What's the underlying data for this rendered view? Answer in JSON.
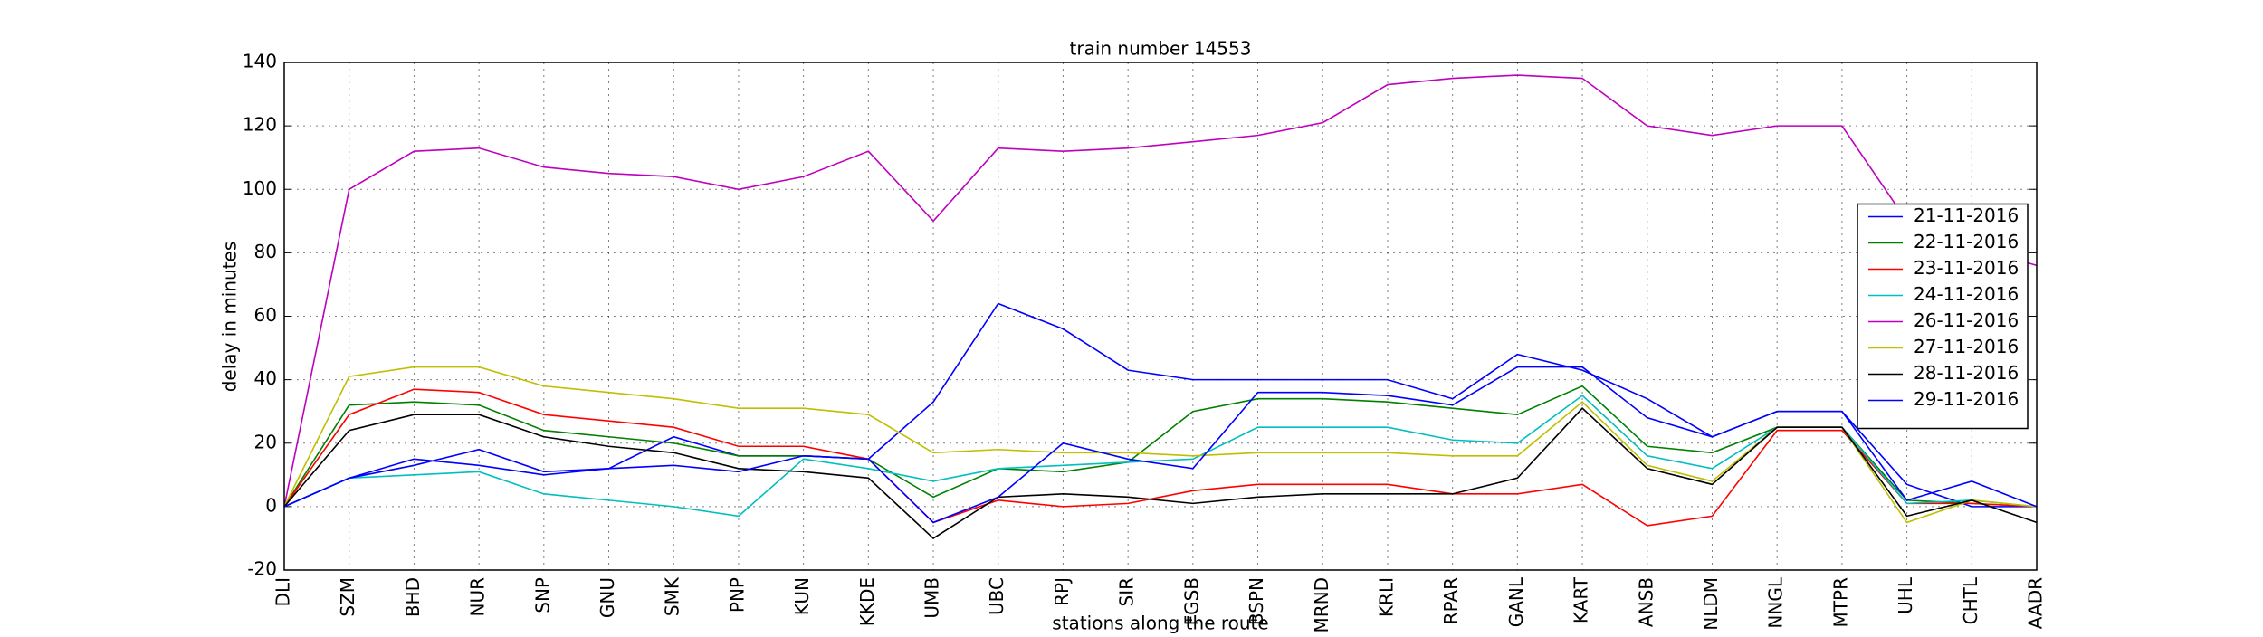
{
  "chart_data": {
    "type": "line",
    "title": "train number 14553",
    "x_label": "stations along the route",
    "y_label": "delay in minutes",
    "categories": [
      "DLI",
      "SZM",
      "BHD",
      "NUR",
      "SNP",
      "GNU",
      "SMK",
      "PNP",
      "KUN",
      "KKDE",
      "UMB",
      "UBC",
      "RPJ",
      "SIR",
      "FGSB",
      "BSPN",
      "MRND",
      "KRLI",
      "RPAR",
      "GANL",
      "KART",
      "ANSB",
      "NLDM",
      "NNGL",
      "MTPR",
      "UHL",
      "CHTL",
      "AADR"
    ],
    "series": [
      {
        "name": "21-11-2016",
        "color": "#0000ff",
        "values": [
          0,
          9,
          15,
          13,
          10,
          12,
          22,
          16,
          16,
          15,
          33,
          64,
          56,
          43,
          40,
          40,
          40,
          40,
          34,
          48,
          43,
          34,
          22,
          30,
          30,
          7,
          0,
          0
        ]
      },
      {
        "name": "22-11-2016",
        "color": "#008000",
        "values": [
          0,
          32,
          33,
          32,
          24,
          22,
          20,
          16,
          16,
          15,
          3,
          12,
          11,
          14,
          30,
          34,
          34,
          33,
          31,
          29,
          38,
          19,
          17,
          25,
          25,
          2,
          1,
          0
        ]
      },
      {
        "name": "23-11-2016",
        "color": "#ff0000",
        "values": [
          0,
          29,
          37,
          36,
          29,
          27,
          25,
          19,
          19,
          15,
          -5,
          2,
          0,
          1,
          5,
          7,
          7,
          7,
          4,
          4,
          7,
          -6,
          -3,
          24,
          24,
          1,
          1,
          0
        ]
      },
      {
        "name": "24-11-2016",
        "color": "#00bfbf",
        "values": [
          0,
          9,
          10,
          11,
          4,
          2,
          0,
          -3,
          15,
          12,
          8,
          12,
          13,
          14,
          15,
          25,
          25,
          25,
          21,
          20,
          35,
          16,
          12,
          25,
          25,
          1,
          2,
          0
        ]
      },
      {
        "name": "26-11-2016",
        "color": "#bf00bf",
        "values": [
          0,
          100,
          112,
          113,
          107,
          105,
          104,
          100,
          104,
          112,
          90,
          113,
          112,
          113,
          115,
          117,
          121,
          133,
          135,
          136,
          135,
          120,
          117,
          120,
          120,
          90,
          82,
          76
        ]
      },
      {
        "name": "27-11-2016",
        "color": "#bfbf00",
        "values": [
          0,
          41,
          44,
          44,
          38,
          36,
          34,
          31,
          31,
          29,
          17,
          18,
          17,
          17,
          16,
          17,
          17,
          17,
          16,
          16,
          33,
          13,
          8,
          25,
          25,
          -5,
          2,
          0
        ]
      },
      {
        "name": "28-11-2016",
        "color": "#000000",
        "values": [
          0,
          24,
          29,
          29,
          22,
          19,
          17,
          12,
          11,
          9,
          -10,
          3,
          4,
          3,
          1,
          3,
          4,
          4,
          4,
          9,
          31,
          12,
          7,
          25,
          25,
          -3,
          2,
          -5
        ]
      },
      {
        "name": "29-11-2016",
        "color": "#0000ff",
        "values": [
          0,
          9,
          13,
          18,
          11,
          12,
          13,
          11,
          16,
          15,
          -5,
          3,
          20,
          15,
          12,
          36,
          36,
          35,
          32,
          44,
          44,
          28,
          22,
          30,
          30,
          2,
          8,
          0
        ]
      }
    ],
    "ylim": [
      -20,
      140
    ],
    "yticks": [
      -20,
      0,
      20,
      40,
      60,
      80,
      100,
      120,
      140
    ],
    "grid": true,
    "legend": "center right"
  }
}
